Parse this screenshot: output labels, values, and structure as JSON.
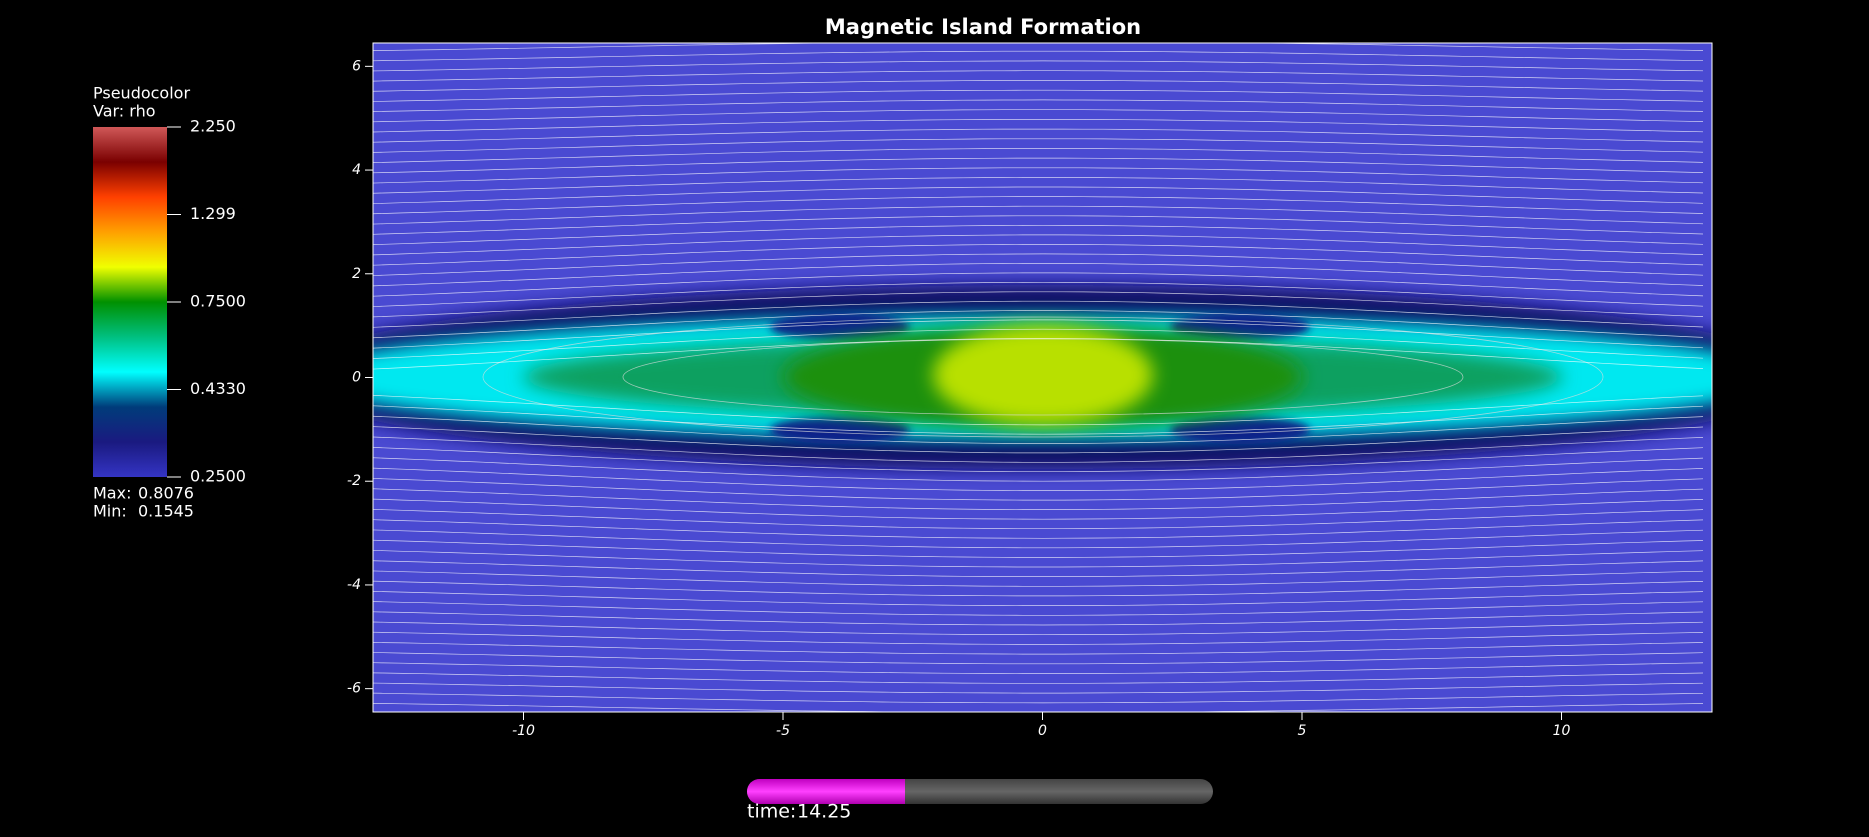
{
  "chart_data": {
    "type": "pseudocolor",
    "title": "Magnetic Island Formation",
    "xlim": [
      -12.9,
      12.9
    ],
    "ylim": [
      -6.45,
      6.45
    ],
    "xticks": [
      -10,
      -5,
      0,
      5,
      10
    ],
    "yticks": [
      -6,
      -4,
      -2,
      0,
      2,
      4,
      6
    ],
    "legend": {
      "title": "Pseudocolor",
      "variable": "Var: rho",
      "scale": "log",
      "range": [
        0.25,
        2.25
      ],
      "ticks": [
        {
          "value": 0.25,
          "label": "0.2500"
        },
        {
          "value": 0.433,
          "label": "0.4330"
        },
        {
          "value": 0.75,
          "label": "0.7500"
        },
        1.299,
        {
          "value": 2.25,
          "label": "2.250"
        }
      ],
      "colormap": [
        "#3434c4",
        "#1a1a80",
        "#003c7a",
        "#00ffff",
        "#00c080",
        "#009000",
        "#f0ff00",
        "#ffa000",
        "#ff4000",
        "#7a0000",
        "#d05858"
      ],
      "max_label": "Max:",
      "max": 0.8076,
      "min_label": "Min:",
      "min": 0.1545
    },
    "time_label": "time:",
    "time": 14.25
  }
}
